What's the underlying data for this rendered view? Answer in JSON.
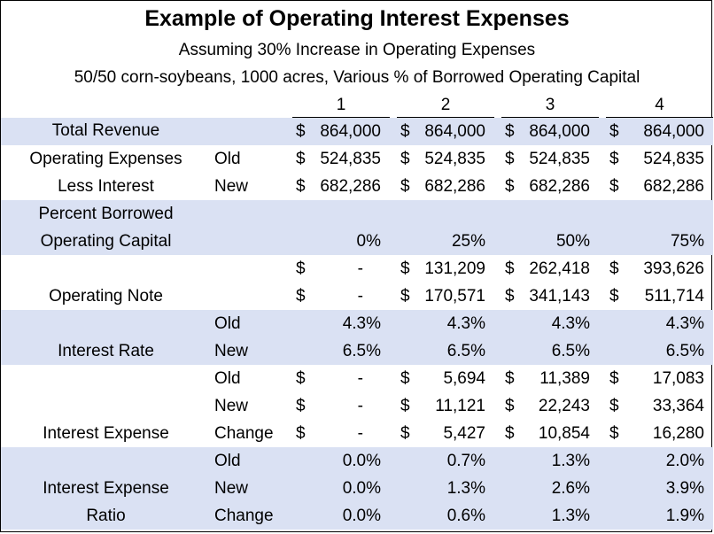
{
  "title": "Example of Operating Interest Expenses",
  "subtitle1": "Assuming 30% Increase in Operating Expenses",
  "subtitle2": "50/50 corn-soybeans, 1000 acres, Various % of Borrowed Operating Capital",
  "columns": [
    "1",
    "2",
    "3",
    "4"
  ],
  "rows": {
    "total_revenue": {
      "label": "Total Revenue",
      "values": [
        [
          "$",
          "864,000"
        ],
        [
          "$",
          "864,000"
        ],
        [
          "$",
          "864,000"
        ],
        [
          "$",
          "864,000"
        ]
      ]
    },
    "opex_old": {
      "label": "Operating Expenses",
      "sub": "Old",
      "values": [
        [
          "$",
          "524,835"
        ],
        [
          "$",
          "524,835"
        ],
        [
          "$",
          "524,835"
        ],
        [
          "$",
          "524,835"
        ]
      ]
    },
    "opex_new": {
      "label": "Less Interest",
      "sub": "New",
      "values": [
        [
          "$",
          "682,286"
        ],
        [
          "$",
          "682,286"
        ],
        [
          "$",
          "682,286"
        ],
        [
          "$",
          "682,286"
        ]
      ]
    },
    "pct_borrowed_1": {
      "label": "Percent Borrowed"
    },
    "pct_borrowed_2": {
      "label": "Operating Capital",
      "values": [
        "0%",
        "25%",
        "50%",
        "75%"
      ]
    },
    "note_old": {
      "values": [
        [
          "$",
          "-"
        ],
        [
          "$",
          "131,209"
        ],
        [
          "$",
          "262,418"
        ],
        [
          "$",
          "393,626"
        ]
      ]
    },
    "note_new": {
      "label": "Operating Note",
      "values": [
        [
          "$",
          "-"
        ],
        [
          "$",
          "170,571"
        ],
        [
          "$",
          "341,143"
        ],
        [
          "$",
          "511,714"
        ]
      ]
    },
    "rate_old": {
      "sub": "Old",
      "values": [
        "4.3%",
        "4.3%",
        "4.3%",
        "4.3%"
      ]
    },
    "rate_new": {
      "label": "Interest Rate",
      "sub": "New",
      "values": [
        "6.5%",
        "6.5%",
        "6.5%",
        "6.5%"
      ]
    },
    "ie_old": {
      "sub": "Old",
      "values": [
        [
          "$",
          "-"
        ],
        [
          "$",
          "5,694"
        ],
        [
          "$",
          "11,389"
        ],
        [
          "$",
          "17,083"
        ]
      ]
    },
    "ie_new": {
      "sub": "New",
      "values": [
        [
          "$",
          "-"
        ],
        [
          "$",
          "11,121"
        ],
        [
          "$",
          "22,243"
        ],
        [
          "$",
          "33,364"
        ]
      ]
    },
    "ie_change": {
      "label": "Interest Expense",
      "sub": "Change",
      "values": [
        [
          "$",
          "-"
        ],
        [
          "$",
          "5,427"
        ],
        [
          "$",
          "10,854"
        ],
        [
          "$",
          "16,280"
        ]
      ]
    },
    "ratio_old": {
      "sub": "Old",
      "values": [
        "0.0%",
        "0.7%",
        "1.3%",
        "2.0%"
      ]
    },
    "ratio_new": {
      "label": "Interest Expense",
      "sub": "New",
      "values": [
        "0.0%",
        "1.3%",
        "2.6%",
        "3.9%"
      ]
    },
    "ratio_change": {
      "label": "Ratio",
      "sub": "Change",
      "values": [
        "0.0%",
        "0.6%",
        "1.3%",
        "1.9%"
      ]
    }
  },
  "colors": {
    "shade": "#dae1f3",
    "border": "#000000"
  }
}
